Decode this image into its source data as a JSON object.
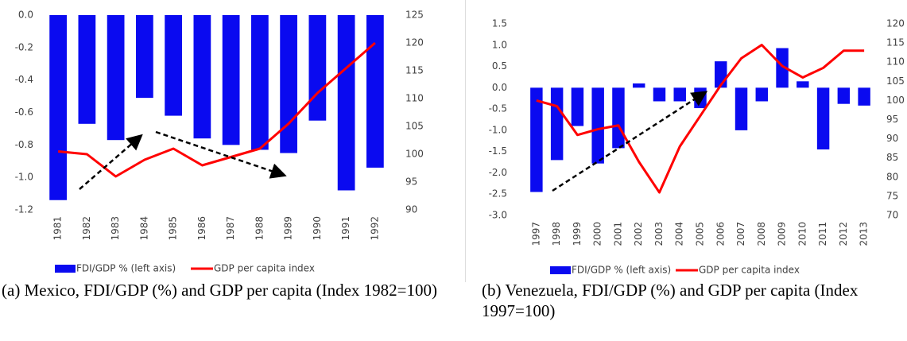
{
  "chart_data": [
    {
      "type": "bar-line",
      "caption": "(a)  Mexico, FDI/GDP (%) and GDP per capita (Index 1982=100)",
      "categories": [
        "1981",
        "1982",
        "1983",
        "1984",
        "1985",
        "1986",
        "1987",
        "1988",
        "1989",
        "1990",
        "1991",
        "1992"
      ],
      "series": [
        {
          "name": "FDI/GDP % (left axis)",
          "type": "bar",
          "color": "#0a0af0",
          "values": [
            -1.14,
            -0.67,
            -0.77,
            -0.51,
            -0.62,
            -0.76,
            -0.8,
            -0.83,
            -0.85,
            -0.65,
            -1.08,
            -0.94
          ]
        },
        {
          "name": "GDP per capita index",
          "type": "line",
          "axis": "y2",
          "color": "#ff0000",
          "values": [
            100.5,
            100,
            96,
            99,
            101,
            98,
            99.5,
            101,
            105.5,
            111,
            115.5,
            120
          ]
        }
      ],
      "ylim": [
        -1.2,
        0
      ],
      "yticks": [
        {
          "value": 0,
          "label": "0.0"
        },
        -0.2,
        -0.4,
        -0.6,
        -0.8,
        {
          "value": -1,
          "label": "-1.0"
        },
        -1.2
      ],
      "y2lim": [
        90,
        125
      ],
      "y2ticks": [
        90,
        95,
        100,
        105,
        110,
        115,
        120,
        125
      ],
      "legend": "bottom"
    },
    {
      "type": "bar-line",
      "caption": "(b)  Venezuela, FDI/GDP (%) and GDP per capita (Index 1997=100)",
      "categories": [
        "1997",
        "1998",
        "1999",
        "2000",
        "2001",
        "2002",
        "2003",
        "2004",
        "2005",
        "2006",
        "2007",
        "2008",
        "2009",
        "2010",
        "2011",
        "2012",
        "2013"
      ],
      "series": [
        {
          "name": "FDI/GDP % (left axis)",
          "type": "bar",
          "color": "#0a0af0",
          "values": [
            -2.45,
            -1.7,
            -0.9,
            -1.78,
            -1.42,
            0.1,
            -0.32,
            -0.32,
            -0.48,
            0.62,
            -1,
            -0.32,
            0.93,
            0.15,
            -1.45,
            -0.38,
            -0.42
          ]
        },
        {
          "name": "GDP per capita index",
          "type": "line",
          "axis": "y2",
          "color": "#ff0000",
          "values": [
            100,
            98.5,
            91,
            92.5,
            93.5,
            84,
            76,
            88,
            96,
            104,
            111,
            114.5,
            109,
            106,
            108.5,
            113,
            113
          ]
        }
      ],
      "ylim": [
        -3,
        1.5
      ],
      "yticks": [
        1.5,
        {
          "value": 1,
          "label": "1.0"
        },
        0.5,
        {
          "value": 0,
          "label": "0.0"
        },
        -0.5,
        {
          "value": -1,
          "label": "-1.0"
        },
        -1.5,
        {
          "value": -2,
          "label": "-2.0"
        },
        -2.5,
        {
          "value": -3,
          "label": "-3.0"
        }
      ],
      "y2lim": [
        70,
        120
      ],
      "y2ticks": [
        70,
        75,
        80,
        85,
        90,
        95,
        100,
        105,
        110,
        115,
        120
      ],
      "legend": "bottom"
    }
  ]
}
